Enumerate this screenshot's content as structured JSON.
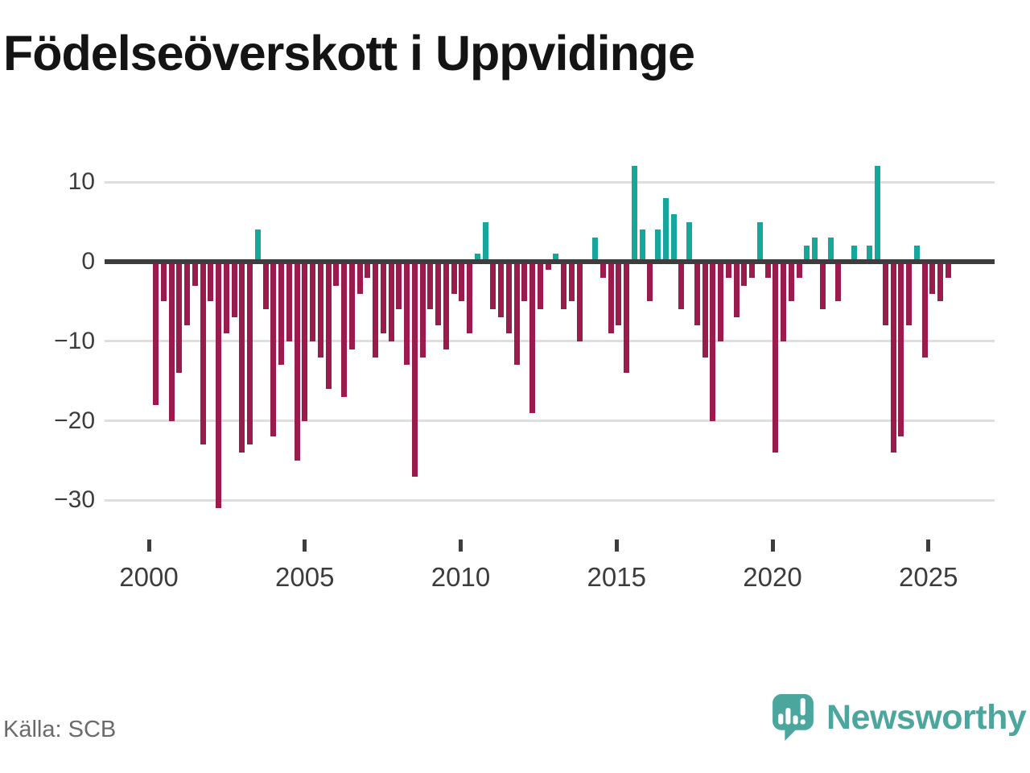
{
  "page": {
    "title": "Födelseöverskott i Uppvidinge",
    "source": "Källa: SCB"
  },
  "logo": {
    "brand": "Newsworthy",
    "icon": "newsworthy-speech-bubble-chart-icon"
  },
  "colors": {
    "positive": "#15a79c",
    "negative": "#9c1b4d",
    "axis": "#3d3d3d",
    "grid": "#dedede",
    "title_text": "#141414",
    "tick_text": "#3c3c3c",
    "source_text": "#6b6b6b",
    "logo_teal": "#4ba69e"
  },
  "chart_data": {
    "type": "bar",
    "title": "Födelseöverskott i Uppvidinge",
    "frequency": "quarterly",
    "start": "2000Q1",
    "end": "2025Q2",
    "values": [
      -18,
      -5,
      -20,
      -14,
      -8,
      -3,
      -23,
      -5,
      -31,
      -9,
      -7,
      -24,
      -23,
      4,
      -6,
      -22,
      -13,
      -10,
      -25,
      -20,
      -10,
      -12,
      -16,
      -3,
      -17,
      -11,
      -4,
      -2,
      -12,
      -9,
      -10,
      -6,
      -13,
      -27,
      -12,
      -6,
      -8,
      -11,
      -4,
      -5,
      -9,
      1,
      5,
      -6,
      -7,
      -9,
      -13,
      -5,
      -19,
      -6,
      -1,
      1,
      -6,
      -5,
      -10,
      0,
      3,
      -2,
      -9,
      -8,
      -14,
      12,
      4,
      -5,
      4,
      8,
      6,
      -6,
      5,
      -8,
      -12,
      -20,
      -10,
      -2,
      -7,
      -3,
      -2,
      5,
      -2,
      -24,
      -10,
      -5,
      -2,
      2,
      3,
      -6,
      3,
      -5,
      0,
      2,
      0,
      2,
      12,
      -8,
      -24,
      -22,
      -8,
      2,
      -12,
      -4,
      -5,
      -2
    ],
    "y_ticks": [
      10,
      0,
      -10,
      -20,
      -30
    ],
    "y_tick_labels": [
      "10",
      "0",
      "−10",
      "−20",
      "−30"
    ],
    "x_ticks_years": [
      2000,
      2005,
      2010,
      2015,
      2020,
      2025
    ],
    "x_tick_labels": [
      "2000",
      "2005",
      "2010",
      "2015",
      "2020",
      "2025"
    ],
    "ylim": [
      -33,
      13
    ],
    "grid": true,
    "legend": false
  }
}
